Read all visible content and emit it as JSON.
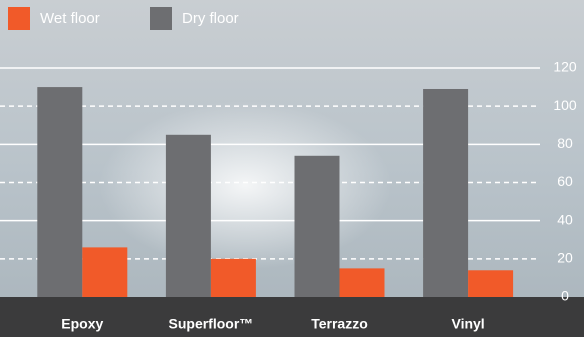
{
  "chart_data": {
    "type": "bar",
    "categories": [
      "Epoxy",
      "Superfloor™",
      "Terrazzo",
      "Vinyl"
    ],
    "series": [
      {
        "name": "Wet floor",
        "color": "#f15a29",
        "values": [
          26,
          20,
          15,
          14
        ]
      },
      {
        "name": "Dry floor",
        "color": "#6d6e71",
        "values": [
          110,
          85,
          74,
          109
        ]
      }
    ],
    "ylim": [
      0,
      120
    ],
    "yticks": [
      0,
      20,
      40,
      60,
      80,
      100,
      120
    ],
    "grid": true
  }
}
